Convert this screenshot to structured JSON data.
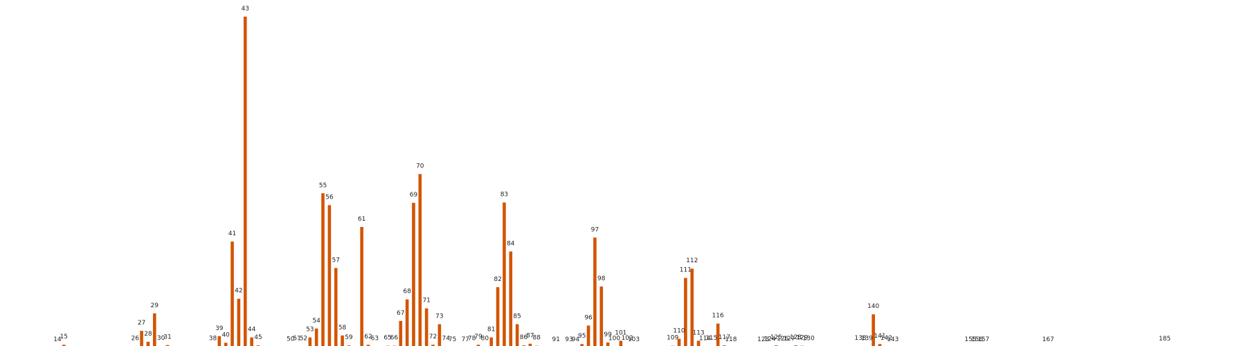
{
  "chart_data": {
    "type": "bar",
    "title": "",
    "xlabel": "",
    "ylabel": "",
    "ylim": [
      0,
      100
    ],
    "xlim": [
      5,
      190
    ],
    "grid": false,
    "legend": "none",
    "bar_color": "#d35400",
    "points": [
      {
        "x": 14,
        "label": "14",
        "y": 0
      },
      {
        "x": 15,
        "label": "15",
        "y": 0.8
      },
      {
        "x": 26,
        "label": "26",
        "y": 0.3
      },
      {
        "x": 27,
        "label": "27",
        "y": 5
      },
      {
        "x": 28,
        "label": "28",
        "y": 1.7
      },
      {
        "x": 29,
        "label": "29",
        "y": 10.3
      },
      {
        "x": 30,
        "label": "30",
        "y": 0.4
      },
      {
        "x": 31,
        "label": "31",
        "y": 0.7
      },
      {
        "x": 38,
        "label": "38",
        "y": 0.3
      },
      {
        "x": 39,
        "label": "39",
        "y": 3.4
      },
      {
        "x": 40,
        "label": "40",
        "y": 1.4
      },
      {
        "x": 41,
        "label": "41",
        "y": 32
      },
      {
        "x": 42,
        "label": "42",
        "y": 14.7
      },
      {
        "x": 43,
        "label": "43",
        "y": 100
      },
      {
        "x": 44,
        "label": "44",
        "y": 3
      },
      {
        "x": 45,
        "label": "45",
        "y": 0.6
      },
      {
        "x": 50,
        "label": "50",
        "y": 0.1
      },
      {
        "x": 51,
        "label": "51",
        "y": 0.3
      },
      {
        "x": 52,
        "label": "52",
        "y": 0.3
      },
      {
        "x": 53,
        "label": "53",
        "y": 3
      },
      {
        "x": 54,
        "label": "54",
        "y": 5.7
      },
      {
        "x": 55,
        "label": "55",
        "y": 46.6
      },
      {
        "x": 56,
        "label": "56",
        "y": 43
      },
      {
        "x": 57,
        "label": "57",
        "y": 24
      },
      {
        "x": 58,
        "label": "58",
        "y": 3.6
      },
      {
        "x": 59,
        "label": "59",
        "y": 0.6
      },
      {
        "x": 61,
        "label": "61",
        "y": 36.4
      },
      {
        "x": 62,
        "label": "62",
        "y": 0.8
      },
      {
        "x": 63,
        "label": "63",
        "y": 0.3
      },
      {
        "x": 65,
        "label": "65",
        "y": 0.5
      },
      {
        "x": 66,
        "label": "66",
        "y": 0.5
      },
      {
        "x": 67,
        "label": "67",
        "y": 8
      },
      {
        "x": 68,
        "label": "68",
        "y": 14.5
      },
      {
        "x": 69,
        "label": "69",
        "y": 43.7
      },
      {
        "x": 70,
        "label": "70",
        "y": 52.4
      },
      {
        "x": 71,
        "label": "71",
        "y": 11.8
      },
      {
        "x": 72,
        "label": "72",
        "y": 0.8
      },
      {
        "x": 73,
        "label": "73",
        "y": 7
      },
      {
        "x": 74,
        "label": "74",
        "y": 0.3
      },
      {
        "x": 75,
        "label": "75",
        "y": 0
      },
      {
        "x": 77,
        "label": "77",
        "y": 0
      },
      {
        "x": 78,
        "label": "78",
        "y": 0.3
      },
      {
        "x": 79,
        "label": "79",
        "y": 0.8
      },
      {
        "x": 80,
        "label": "80",
        "y": 0.3
      },
      {
        "x": 81,
        "label": "81",
        "y": 3
      },
      {
        "x": 82,
        "label": "82",
        "y": 18.2
      },
      {
        "x": 83,
        "label": "83",
        "y": 43.8
      },
      {
        "x": 84,
        "label": "84",
        "y": 29
      },
      {
        "x": 85,
        "label": "85",
        "y": 7
      },
      {
        "x": 86,
        "label": "86",
        "y": 0.6
      },
      {
        "x": 87,
        "label": "87",
        "y": 1.1
      },
      {
        "x": 88,
        "label": "88",
        "y": 0.5
      },
      {
        "x": 91,
        "label": "91",
        "y": 0
      },
      {
        "x": 93,
        "label": "93",
        "y": 0
      },
      {
        "x": 94,
        "label": "94",
        "y": 0
      },
      {
        "x": 95,
        "label": "95",
        "y": 1
      },
      {
        "x": 96,
        "label": "96",
        "y": 6.6
      },
      {
        "x": 97,
        "label": "97",
        "y": 33.2
      },
      {
        "x": 98,
        "label": "98",
        "y": 18.4
      },
      {
        "x": 99,
        "label": "99",
        "y": 1.5
      },
      {
        "x": 100,
        "label": "100",
        "y": 0.3
      },
      {
        "x": 101,
        "label": "101",
        "y": 2
      },
      {
        "x": 102,
        "label": "102",
        "y": 0.4
      },
      {
        "x": 103,
        "label": "103",
        "y": 0
      },
      {
        "x": 109,
        "label": "109",
        "y": 0.5
      },
      {
        "x": 110,
        "label": "110",
        "y": 2.6
      },
      {
        "x": 111,
        "label": "111",
        "y": 21
      },
      {
        "x": 112,
        "label": "112",
        "y": 23.8
      },
      {
        "x": 113,
        "label": "113",
        "y": 2
      },
      {
        "x": 114,
        "label": "114",
        "y": 0.3
      },
      {
        "x": 115,
        "label": "115",
        "y": 0.4
      },
      {
        "x": 116,
        "label": "116",
        "y": 7.2
      },
      {
        "x": 117,
        "label": "117",
        "y": 0.6
      },
      {
        "x": 118,
        "label": "118",
        "y": 0
      },
      {
        "x": 123,
        "label": "123",
        "y": 0
      },
      {
        "x": 124,
        "label": "124",
        "y": 0.1
      },
      {
        "x": 125,
        "label": "125",
        "y": 0.6
      },
      {
        "x": 126,
        "label": "126",
        "y": 0.2
      },
      {
        "x": 127,
        "label": "127",
        "y": 0.2
      },
      {
        "x": 128,
        "label": "128",
        "y": 0.6
      },
      {
        "x": 129,
        "label": "129",
        "y": 0.5
      },
      {
        "x": 130,
        "label": "130",
        "y": 0.3
      },
      {
        "x": 138,
        "label": "138",
        "y": 0.4
      },
      {
        "x": 139,
        "label": "139",
        "y": 0.3
      },
      {
        "x": 140,
        "label": "140",
        "y": 10
      },
      {
        "x": 141,
        "label": "141",
        "y": 1
      },
      {
        "x": 142,
        "label": "142",
        "y": 0.4
      },
      {
        "x": 143,
        "label": "143",
        "y": 0
      },
      {
        "x": 155,
        "label": "155",
        "y": 0
      },
      {
        "x": 156,
        "label": "156",
        "y": 0
      },
      {
        "x": 157,
        "label": "157",
        "y": 0
      },
      {
        "x": 167,
        "label": "167",
        "y": 0
      },
      {
        "x": 185,
        "label": "185",
        "y": 0.2
      }
    ]
  }
}
